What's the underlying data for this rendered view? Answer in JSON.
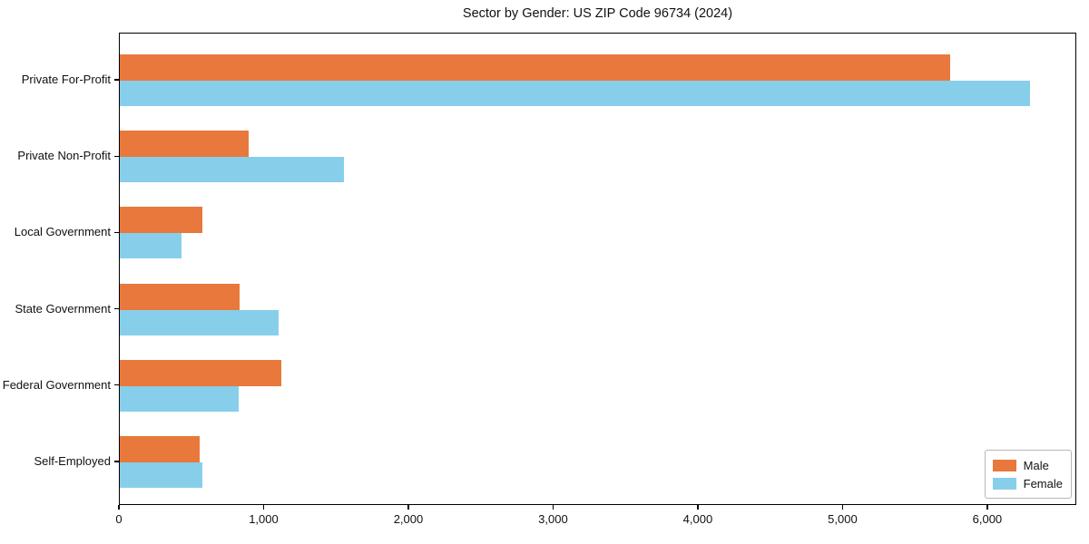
{
  "title": "Sector by Gender: US ZIP Code 96734 (2024)",
  "colors": {
    "male": "#E8783C",
    "female": "#87CEEB",
    "axis": "#000000",
    "legend_border": "#B7B7B7",
    "background": "#FFFFFF"
  },
  "legend": {
    "position": "lower right",
    "items": [
      {
        "label": "Male",
        "color": "#E8783C"
      },
      {
        "label": "Female",
        "color": "#87CEEB"
      }
    ]
  },
  "chart_data": {
    "type": "bar",
    "orientation": "horizontal",
    "title": "Sector by Gender: US ZIP Code 96734 (2024)",
    "xlabel": "",
    "ylabel": "",
    "categories": [
      "Private For-Profit",
      "Private Non-Profit",
      "Local Government",
      "State Government",
      "Federal Government",
      "Self-Employed"
    ],
    "series": [
      {
        "name": "Male",
        "color": "#E8783C",
        "values": [
          5750,
          890,
          570,
          830,
          1120,
          550
        ]
      },
      {
        "name": "Female",
        "color": "#87CEEB",
        "values": [
          6300,
          1550,
          430,
          1100,
          820,
          570
        ]
      }
    ],
    "xlim": [
      0,
      6615
    ],
    "xticks": [
      0,
      1000,
      2000,
      3000,
      4000,
      5000,
      6000
    ],
    "xtick_labels": [
      "0",
      "1,000",
      "2,000",
      "3,000",
      "4,000",
      "5,000",
      "6,000"
    ],
    "grid": false,
    "legend_position": "lower right"
  }
}
